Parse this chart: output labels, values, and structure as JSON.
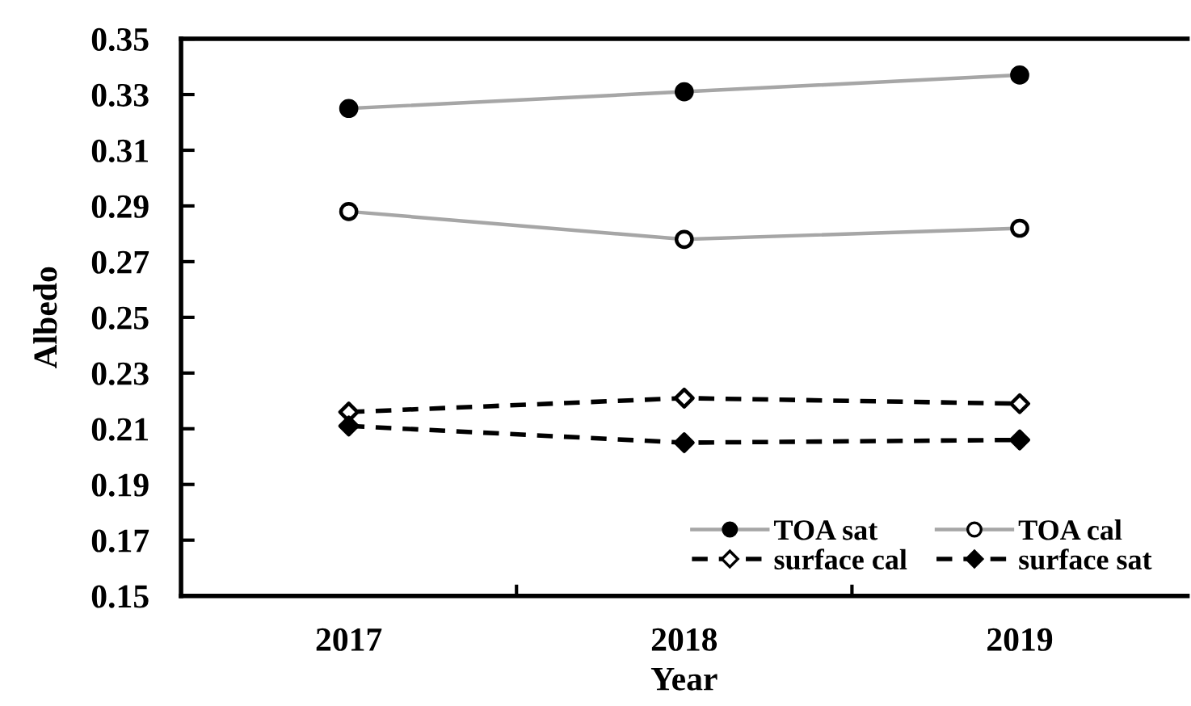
{
  "chart_data": {
    "type": "line",
    "xlabel": "Year",
    "ylabel": "Albedo",
    "categories": [
      "2017",
      "2018",
      "2019"
    ],
    "ylim": [
      0.15,
      0.35
    ],
    "yticks": [
      0.15,
      0.17,
      0.19,
      0.21,
      0.23,
      0.25,
      0.27,
      0.29,
      0.31,
      0.33,
      0.35
    ],
    "grid": false,
    "legend": "bottom right",
    "series": [
      {
        "name": "TOA sat",
        "color": "#a6a6a6",
        "colors": [
          "#000000",
          "#000000",
          "#000000"
        ],
        "marker": "circle",
        "line_style": "solid",
        "values": [
          0.325,
          0.331,
          0.337
        ]
      },
      {
        "name": "TOA cal",
        "color": "#a6a6a6",
        "colors": [
          "#ffffff",
          "#ffffff",
          "#ffffff"
        ],
        "marker": "circle",
        "line_style": "solid",
        "values": [
          0.288,
          0.278,
          0.282
        ]
      },
      {
        "name": "surface cal",
        "color": "#000000",
        "colors": [
          "#ffffff",
          "#ffffff",
          "#ffffff"
        ],
        "marker": "diamond",
        "line_style": "dashed",
        "values": [
          0.216,
          0.221,
          0.219
        ]
      },
      {
        "name": "surface sat",
        "color": "#000000",
        "colors": [
          "#000000",
          "#000000",
          "#000000"
        ],
        "marker": "diamond",
        "line_style": "dashed",
        "values": [
          0.211,
          0.205,
          0.206
        ]
      }
    ]
  }
}
